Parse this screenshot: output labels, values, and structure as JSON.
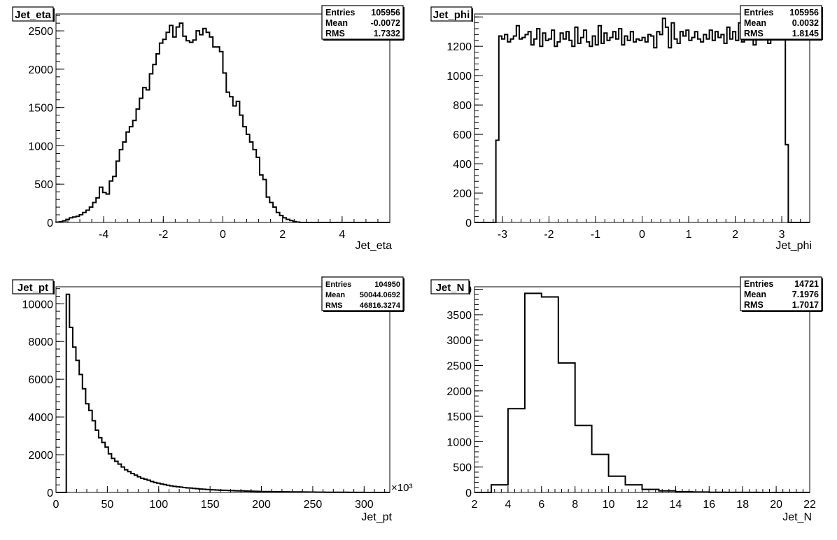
{
  "chart_data": [
    {
      "type": "bar",
      "title": "Jet_eta",
      "xlabel": "Jet_eta",
      "ylabel": "",
      "stats": {
        "entries_label": "Entries",
        "entries": "105956",
        "mean_label": "Mean",
        "mean": "-0.0072",
        "rms_label": "RMS",
        "rms": "1.7332"
      },
      "xlim": [
        -5.6,
        5.6
      ],
      "ylim": [
        0,
        2720
      ],
      "x_ticks": [
        -4,
        -2,
        0,
        2,
        4
      ],
      "x_tick_labels": [
        "-4",
        "-2",
        "0",
        "2",
        "4"
      ],
      "y_ticks": [
        0,
        500,
        1000,
        1500,
        2000,
        2500
      ],
      "y_tick_labels": [
        "0",
        "500",
        "1000",
        "1500",
        "2000",
        "2500"
      ],
      "bin_edges_start": -5.6,
      "bin_width": 0.112,
      "values": [
        0,
        0,
        0,
        0,
        0,
        0,
        0,
        0,
        0,
        0,
        0,
        0,
        0,
        0,
        0,
        0,
        0,
        0,
        0,
        0,
        0,
        0,
        0,
        0,
        0,
        0,
        0,
        0,
        0,
        0,
        0,
        0,
        0,
        0,
        0,
        0,
        0,
        0,
        0,
        0,
        0,
        0,
        0,
        0,
        0,
        0,
        0,
        0,
        0,
        0,
        0,
        0,
        0,
        0,
        0,
        0,
        0,
        0,
        0,
        0,
        0,
        0,
        0,
        0,
        0,
        0,
        0,
        0,
        0,
        0,
        0,
        0,
        0,
        0,
        0,
        0,
        0,
        0,
        0,
        0,
        0,
        0,
        0,
        0,
        0,
        0,
        0,
        0,
        0,
        0,
        0,
        0,
        0,
        0,
        0,
        0,
        0,
        0,
        0,
        0
      ],
      "_comment_unused": "",
      "series_values": [
        5,
        10,
        20,
        40,
        60,
        70,
        80,
        100,
        130,
        160,
        200,
        260,
        320,
        460,
        390,
        370,
        540,
        600,
        800,
        950,
        1050,
        1180,
        1250,
        1330,
        1480,
        1620,
        1760,
        1730,
        1940,
        2060,
        2200,
        2340,
        2390,
        2480,
        2570,
        2420,
        2550,
        2600,
        2430,
        2370,
        2350,
        2380,
        2500,
        2450,
        2530,
        2480,
        2420,
        2290,
        2290,
        2230,
        1950,
        1700,
        1640,
        1520,
        1580,
        1400,
        1250,
        1150,
        1050,
        950,
        850,
        620,
        560,
        330,
        260,
        200,
        130,
        90,
        60,
        40,
        25,
        12,
        5
      ]
    },
    {
      "type": "bar",
      "title": "Jet_phi",
      "xlabel": "Jet_phi",
      "ylabel": "",
      "stats": {
        "entries_label": "Entries",
        "entries": "105956",
        "mean_label": "Mean",
        "mean": "0.0032",
        "rms_label": "RMS",
        "rms": "1.8145"
      },
      "xlim": [
        -3.6,
        3.6
      ],
      "ylim": [
        0,
        1420
      ],
      "x_ticks": [
        -3,
        -2,
        -1,
        0,
        1,
        2,
        3
      ],
      "x_tick_labels": [
        "-3",
        "-2",
        "-1",
        "0",
        "1",
        "2",
        "3"
      ],
      "y_ticks": [
        0,
        200,
        400,
        600,
        800,
        1000,
        1200,
        1400
      ],
      "y_tick_labels": [
        "0",
        "200",
        "400",
        "600",
        "800",
        "1000",
        "1200",
        "1400"
      ],
      "bin_edges_start": -3.14,
      "bin_width": 0.0628,
      "series_values": [
        560,
        1270,
        1250,
        1280,
        1230,
        1250,
        1270,
        1340,
        1250,
        1260,
        1280,
        1300,
        1210,
        1250,
        1320,
        1200,
        1290,
        1240,
        1250,
        1310,
        1200,
        1230,
        1290,
        1250,
        1300,
        1240,
        1200,
        1330,
        1220,
        1260,
        1310,
        1230,
        1200,
        1270,
        1210,
        1340,
        1220,
        1290,
        1240,
        1260,
        1300,
        1250,
        1320,
        1210,
        1270,
        1240,
        1300,
        1230,
        1250,
        1240,
        1260,
        1230,
        1280,
        1270,
        1190,
        1300,
        1280,
        1390,
        1330,
        1190,
        1360,
        1250,
        1220,
        1300,
        1270,
        1310,
        1240,
        1260,
        1300,
        1250,
        1230,
        1280,
        1250,
        1310,
        1240,
        1300,
        1260,
        1280,
        1220,
        1330,
        1250,
        1300,
        1240,
        1360,
        1230,
        1290,
        1250,
        1340,
        1210,
        1390,
        1260,
        1250,
        1300,
        1220,
        1330,
        1280,
        1290,
        1260,
        1280,
        530
      ]
    },
    {
      "type": "bar",
      "title": "Jet_pt",
      "xlabel": "Jet_pt",
      "ylabel": "",
      "x_multiplier": "×10³",
      "stats": {
        "entries_label": "Entries",
        "entries": "104950",
        "mean_label": "Mean",
        "mean": "50044.0692",
        "rms_label": "RMS",
        "rms": "46816.3274"
      },
      "xlim": [
        0,
        325
      ],
      "ylim": [
        0,
        10900
      ],
      "x_ticks": [
        0,
        50,
        100,
        150,
        200,
        250,
        300
      ],
      "x_tick_labels": [
        "0",
        "50",
        "100",
        "150",
        "200",
        "250",
        "300"
      ],
      "y_ticks": [
        0,
        2000,
        4000,
        6000,
        8000,
        10000
      ],
      "y_tick_labels": [
        "0",
        "2000",
        "4000",
        "6000",
        "8000",
        "10000"
      ],
      "bin_edges_start": 10,
      "bin_width": 3.15,
      "series_values": [
        10500,
        8750,
        7700,
        7000,
        6250,
        5500,
        4700,
        4350,
        3800,
        3300,
        2900,
        2650,
        2400,
        2050,
        1800,
        1650,
        1500,
        1350,
        1200,
        1100,
        1000,
        920,
        830,
        750,
        700,
        650,
        580,
        530,
        490,
        450,
        420,
        380,
        350,
        320,
        300,
        280,
        260,
        240,
        230,
        210,
        200,
        180,
        170,
        160,
        150,
        140,
        130,
        120,
        115,
        110,
        100,
        95,
        90,
        85,
        80,
        75,
        70,
        65,
        60,
        55,
        50,
        48,
        45,
        42,
        40,
        38,
        36,
        34,
        32,
        30,
        28,
        26,
        25,
        24,
        22,
        20,
        18,
        16,
        15,
        14,
        12,
        11,
        10,
        9,
        8,
        7,
        6,
        5,
        4,
        3,
        2,
        2,
        1
      ]
    },
    {
      "type": "bar",
      "title": "Jet_N",
      "xlabel": "Jet_N",
      "ylabel": "",
      "stats": {
        "entries_label": "Entries",
        "entries": "14721",
        "mean_label": "Mean",
        "mean": "7.1976",
        "rms_label": "RMS",
        "rms": "1.7017"
      },
      "xlim": [
        2,
        22
      ],
      "ylim": [
        0,
        4050
      ],
      "x_ticks": [
        2,
        4,
        6,
        8,
        10,
        12,
        14,
        16,
        18,
        20,
        22
      ],
      "x_tick_labels": [
        "2",
        "4",
        "6",
        "8",
        "10",
        "12",
        "14",
        "16",
        "18",
        "20",
        "22"
      ],
      "y_ticks": [
        0,
        500,
        1000,
        1500,
        2000,
        2500,
        3000,
        3500,
        4000
      ],
      "y_tick_labels": [
        "0",
        "500",
        "1000",
        "1500",
        "2000",
        "2500",
        "3000",
        "3500",
        "4000"
      ],
      "bin_edges_start": 2,
      "bin_width": 1,
      "series_values": [
        0,
        150,
        1650,
        3920,
        3850,
        2550,
        1320,
        750,
        320,
        150,
        60,
        30,
        15,
        8,
        4,
        2,
        1,
        0,
        0,
        0
      ]
    }
  ]
}
